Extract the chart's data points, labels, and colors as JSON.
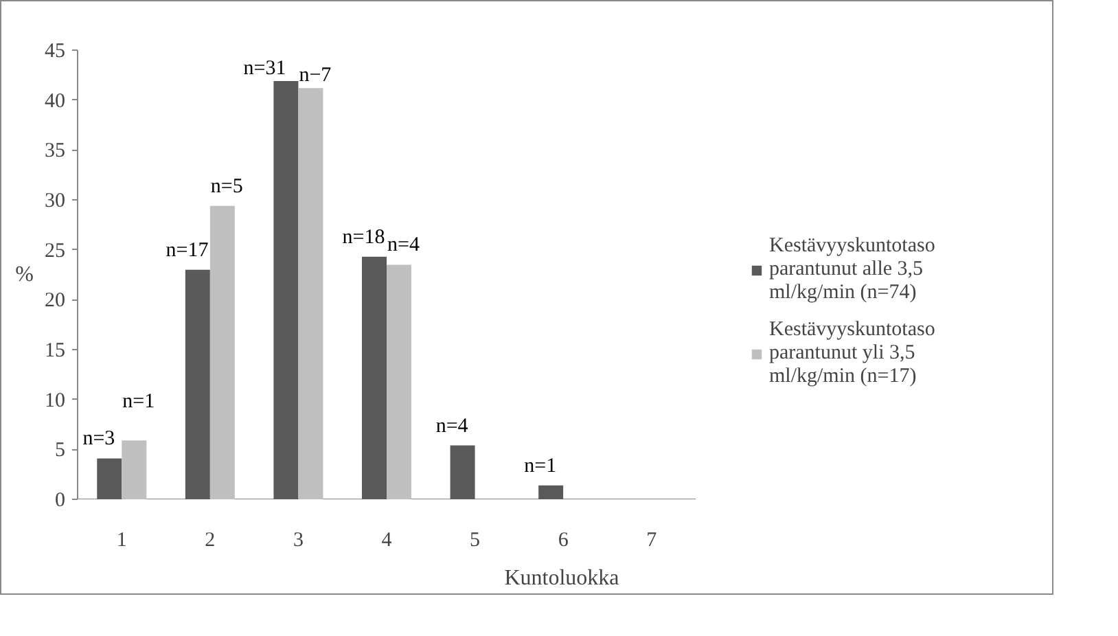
{
  "chart_data": {
    "type": "bar",
    "xlabel": "Kuntoluokka",
    "ylabel": "%",
    "categories": [
      "1",
      "2",
      "3",
      "4",
      "5",
      "6",
      "7"
    ],
    "series": [
      {
        "name": "Kestävyyskuntotaso parantunut alle 3,5 ml/kg/min (n=74)",
        "color": "#595959",
        "values": [
          4.1,
          23.0,
          41.9,
          24.3,
          5.4,
          1.4,
          0
        ]
      },
      {
        "name": "Kestävyyskuntotaso parantunut yli 3,5 ml/kg/min (n=17)",
        "color": "#bfbfbf",
        "values": [
          5.9,
          29.4,
          41.2,
          23.5,
          0,
          0,
          0
        ]
      }
    ],
    "annotations": [
      {
        "text": "n=3",
        "x": "1",
        "y": 4.1
      },
      {
        "text": "n=1",
        "x": "1",
        "y": 5.9
      },
      {
        "text": "n=17",
        "x": "2",
        "y": 23.0
      },
      {
        "text": "n=5",
        "x": "2",
        "y": 29.4
      },
      {
        "text": "n=31",
        "x": "3",
        "y": 41.9
      },
      {
        "text": "n−7",
        "x": "3",
        "y": 41.2
      },
      {
        "text": "n=18",
        "x": "4",
        "y": 24.3
      },
      {
        "text": "n=4",
        "x": "4",
        "y": 23.5
      },
      {
        "text": "n=4",
        "x": "5",
        "y": 5.4
      },
      {
        "text": "n=1",
        "x": "6",
        "y": 1.4
      }
    ],
    "ylim": [
      0,
      45
    ],
    "yticks": [
      0,
      5,
      10,
      15,
      20,
      25,
      30,
      35,
      40,
      45
    ],
    "grid": false,
    "legend": "right"
  }
}
